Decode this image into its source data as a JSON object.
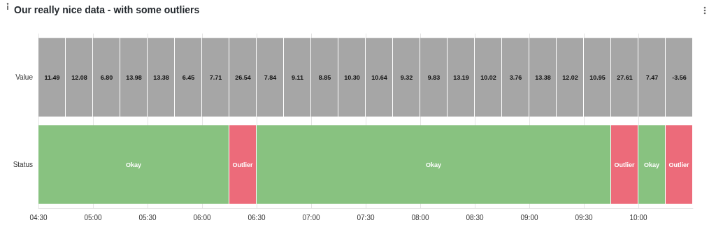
{
  "chart_data": {
    "type": "bar",
    "orientation": "horizontal",
    "title": "Our really nice data - with some outliers",
    "categories": [
      "Value",
      "Status"
    ],
    "xlim": [
      4.5,
      10.5
    ],
    "xticks": [
      {
        "value": 4.5,
        "label": "04:30"
      },
      {
        "value": 5,
        "label": "05:00"
      },
      {
        "value": 5.5,
        "label": "05:30"
      },
      {
        "value": 6,
        "label": "06:00"
      },
      {
        "value": 6.5,
        "label": "06:30"
      },
      {
        "value": 7,
        "label": "07:00"
      },
      {
        "value": 7.5,
        "label": "07:30"
      },
      {
        "value": 8,
        "label": "08:00"
      },
      {
        "value": 8.5,
        "label": "08:30"
      },
      {
        "value": 9,
        "label": "09:00"
      },
      {
        "value": 9.5,
        "label": "09:30"
      },
      {
        "value": 10,
        "label": "10:00"
      }
    ],
    "grid": "x",
    "series": [
      {
        "values": [
          0.25,
          1.75
        ],
        "base": [
          4.5,
          4.5
        ],
        "value_labels": [
          null,
          "Okay"
        ],
        "colors": [
          "#a6a6a6",
          "#88c280"
        ]
      },
      {
        "values": [
          0.25,
          0.25
        ],
        "base": [
          4.75,
          6.25
        ],
        "value_labels": [
          null,
          "Outlier"
        ],
        "colors": [
          "#a6a6a6",
          "#ec6b7a"
        ]
      },
      {
        "values": [
          0.25,
          3.25
        ],
        "base": [
          5,
          6.5
        ],
        "value_labels": [
          null,
          "Okay"
        ],
        "colors": [
          "#a6a6a6",
          "#88c280"
        ]
      },
      {
        "values": [
          0.25,
          0.25
        ],
        "base": [
          5.25,
          9.75
        ],
        "value_labels": [
          null,
          "Outlier"
        ],
        "colors": [
          "#a6a6a6",
          "#ec6b7a"
        ]
      },
      {
        "values": [
          0.25,
          0.25
        ],
        "base": [
          5.5,
          10
        ],
        "value_labels": [
          null,
          "Okay"
        ],
        "colors": [
          "#a6a6a6",
          "#88c280"
        ]
      },
      {
        "values": [
          0.25,
          0.25
        ],
        "base": [
          5.75,
          10.25
        ],
        "value_labels": [
          null,
          "Outlier"
        ],
        "colors": [
          "#a6a6a6",
          "#ec6b7a"
        ]
      },
      {
        "values": [
          0.25,
          null
        ],
        "base": [
          6,
          null
        ],
        "colors": [
          "#a6a6a6",
          null
        ]
      },
      {
        "values": [
          0.25,
          null
        ],
        "base": [
          6.25,
          null
        ],
        "colors": [
          "#a6a6a6",
          null
        ]
      },
      {
        "values": [
          0.25,
          null
        ],
        "base": [
          6.5,
          null
        ],
        "colors": [
          "#a6a6a6",
          null
        ]
      },
      {
        "values": [
          0.25,
          null
        ],
        "base": [
          6.75,
          null
        ],
        "colors": [
          "#a6a6a6",
          null
        ]
      },
      {
        "values": [
          0.25,
          null
        ],
        "base": [
          7,
          null
        ],
        "colors": [
          "#a6a6a6",
          null
        ]
      },
      {
        "values": [
          0.25,
          null
        ],
        "base": [
          7.25,
          null
        ],
        "colors": [
          "#a6a6a6",
          null
        ]
      },
      {
        "values": [
          0.25,
          null
        ],
        "base": [
          7.5,
          null
        ],
        "colors": [
          "#a6a6a6",
          null
        ]
      },
      {
        "values": [
          0.25,
          null
        ],
        "base": [
          7.75,
          null
        ],
        "colors": [
          "#a6a6a6",
          null
        ]
      },
      {
        "values": [
          0.25,
          null
        ],
        "base": [
          8,
          null
        ],
        "colors": [
          "#a6a6a6",
          null
        ]
      },
      {
        "values": [
          0.25,
          null
        ],
        "base": [
          8.25,
          null
        ],
        "colors": [
          "#a6a6a6",
          null
        ]
      },
      {
        "values": [
          0.25,
          null
        ],
        "base": [
          8.5,
          null
        ],
        "colors": [
          "#a6a6a6",
          null
        ]
      },
      {
        "values": [
          0.25,
          null
        ],
        "base": [
          8.75,
          null
        ],
        "colors": [
          "#a6a6a6",
          null
        ]
      },
      {
        "values": [
          0.25,
          null
        ],
        "base": [
          9,
          null
        ],
        "colors": [
          "#a6a6a6",
          null
        ]
      },
      {
        "values": [
          0.25,
          null
        ],
        "base": [
          9.25,
          null
        ],
        "colors": [
          "#a6a6a6",
          null
        ]
      },
      {
        "values": [
          0.25,
          null
        ],
        "base": [
          9.5,
          null
        ],
        "colors": [
          "#a6a6a6",
          null
        ]
      },
      {
        "values": [
          0.25,
          null
        ],
        "base": [
          9.75,
          null
        ],
        "colors": [
          "#a6a6a6",
          null
        ]
      },
      {
        "values": [
          0.25,
          null
        ],
        "base": [
          10,
          null
        ],
        "colors": [
          "#a6a6a6",
          null
        ]
      },
      {
        "values": [
          0.25,
          null
        ],
        "base": [
          10.25,
          null
        ],
        "colors": [
          "#a6a6a6",
          null
        ]
      }
    ],
    "annotations": [
      "11.49",
      "12.08",
      "6.80",
      "13.98",
      "13.38",
      "6.45",
      "7.71",
      "26.54",
      "7.84",
      "9.11",
      "8.85",
      "10.30",
      "10.64",
      "9.32",
      "9.83",
      "13.19",
      "10.02",
      "3.76",
      "13.38",
      "12.02",
      "10.95",
      "27.61",
      "7.47",
      "-3.56"
    ]
  }
}
